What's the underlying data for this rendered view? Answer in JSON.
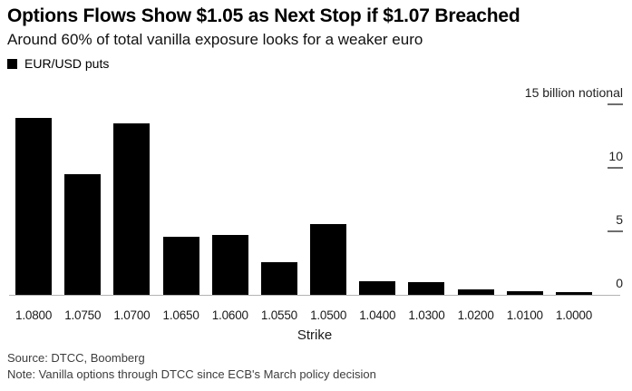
{
  "header": {
    "title": "Options Flows Show $1.05 as Next Stop if $1.07 Breached",
    "subtitle": "Around 60% of total vanilla exposure looks for a weaker euro"
  },
  "chart_data": {
    "type": "bar",
    "title": "Options Flows Show $1.05 as Next Stop if $1.07 Breached",
    "subtitle": "Around 60% of total vanilla exposure looks for a weaker euro",
    "series_name": "EUR/USD puts",
    "categories": [
      "1.0800",
      "1.0750",
      "1.0700",
      "1.0650",
      "1.0600",
      "1.0550",
      "1.0500",
      "1.0400",
      "1.0300",
      "1.0200",
      "1.0100",
      "1.0000"
    ],
    "values": [
      13.9,
      9.5,
      13.5,
      4.6,
      4.7,
      2.6,
      5.6,
      1.1,
      1.0,
      0.45,
      0.3,
      0.2
    ],
    "xlabel": "Strike",
    "ylabel_unit": "15 billion notional",
    "ylim": [
      0,
      15
    ],
    "yticks": [
      {
        "value": 15,
        "label": "15 billion notional",
        "dash": true
      },
      {
        "value": 10,
        "label": "10",
        "dash": true
      },
      {
        "value": 5,
        "label": "5",
        "dash": true
      },
      {
        "value": 0,
        "label": "0",
        "dash": false
      }
    ],
    "grid": "off",
    "legend_position": "top-left",
    "bar_color": "#000000"
  },
  "footer": {
    "source": "Source: DTCC, Boomberg",
    "note": "Note: Vanilla options through DTCC since ECB's March policy decision"
  },
  "colors": {
    "background": "#ffffff",
    "bar": "#000000",
    "axis_line": "#b3b3b3",
    "tick_dash": "#6e6e6e",
    "text": "#000000",
    "footer_text": "#3d3d3d"
  }
}
